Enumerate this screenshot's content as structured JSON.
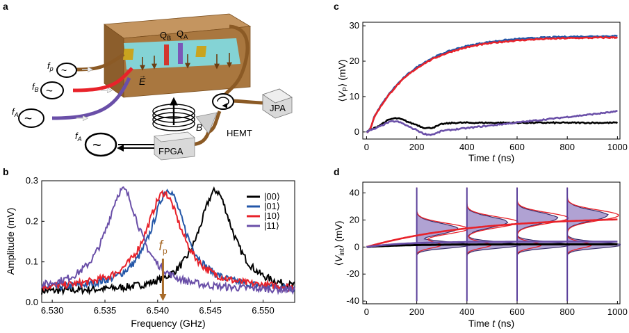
{
  "panels": {
    "a": "a",
    "b": "b",
    "c": "c",
    "d": "d"
  },
  "schematic": {
    "qb": "Q",
    "qb_sub": "B",
    "qa": "Q",
    "qa_sub": "A",
    "fp": "f",
    "fp_sub": "p",
    "fB": "f",
    "fB_sub": "B",
    "fA": "f",
    "fA_sub": "A",
    "fA2": "f",
    "fA2_sub": "A",
    "E": "E",
    "B": "B",
    "jpa": "JPA",
    "hemt": "HEMT",
    "fpga": "FPGA"
  },
  "colors": {
    "s00": "#000000",
    "s01": "#2457a8",
    "s10": "#e8222a",
    "s11": "#6a4fa8",
    "copper": "#9a5f22",
    "box": "#a9773f",
    "cyan": "#7fdde5"
  },
  "chart_data": [
    {
      "id": "b",
      "type": "line",
      "xlabel": "Frequency (GHz)",
      "ylabel": "Amplitude (mV)",
      "xlim": [
        6.529,
        6.553
      ],
      "ylim": [
        0,
        0.3
      ],
      "xticks": [
        "6.530",
        "6.535",
        "6.540",
        "6.545",
        "6.550"
      ],
      "yticks": [
        "0.0",
        "0.1",
        "0.2",
        "0.3"
      ],
      "annotation": {
        "text": "f",
        "sub": "p",
        "x": 6.5405
      },
      "series": [
        {
          "name": "|00⟩",
          "color": "#000000",
          "x0": 6.5455,
          "peak": 0.275,
          "width": 0.002,
          "base": 0.025
        },
        {
          "name": "|01⟩",
          "color": "#2457a8",
          "x0": 6.541,
          "peak": 0.278,
          "width": 0.002,
          "base": 0.03
        },
        {
          "name": "|10⟩",
          "color": "#e8222a",
          "x0": 6.5406,
          "peak": 0.27,
          "width": 0.0021,
          "base": 0.032
        },
        {
          "name": "|11⟩",
          "color": "#6a4fa8",
          "x0": 6.5367,
          "peak": 0.278,
          "width": 0.002,
          "base": 0.028
        }
      ]
    },
    {
      "id": "c",
      "type": "line",
      "xlabel": "Time t (ns)",
      "ylabel": "⟨VP⟩ (mV)",
      "xlim": [
        -15,
        1010
      ],
      "ylim": [
        -2,
        31
      ],
      "xticks": [
        "0",
        "200",
        "400",
        "600",
        "800",
        "1000"
      ],
      "yticks": [
        "0",
        "10",
        "20",
        "30"
      ],
      "series": [
        {
          "name": "|00⟩",
          "color": "#000000",
          "final": 2.6
        },
        {
          "name": "|01⟩",
          "color": "#2457a8",
          "final": 27.2
        },
        {
          "name": "|10⟩",
          "color": "#e8222a",
          "final": 26.8
        },
        {
          "name": "|11⟩",
          "color": "#6a4fa8",
          "final": 5.8
        }
      ]
    },
    {
      "id": "d",
      "type": "line",
      "xlabel": "Time t (ns)",
      "ylabel": "⟨Vint⟩ (mV)",
      "xlim": [
        -15,
        1010
      ],
      "ylim": [
        -42,
        48
      ],
      "xticks": [
        "0",
        "200",
        "400",
        "600",
        "800",
        "1000"
      ],
      "yticks": [
        "-40",
        "-20",
        "0",
        "20",
        "40"
      ],
      "histogram_times": [
        200,
        400,
        600,
        800
      ],
      "series": [
        {
          "name": "|00⟩",
          "color": "#000000",
          "final": 2
        },
        {
          "name": "|10⟩",
          "color": "#e8222a",
          "final": 21
        },
        {
          "name": "|11⟩",
          "color": "#6a4fa8",
          "final": 4
        }
      ]
    }
  ]
}
